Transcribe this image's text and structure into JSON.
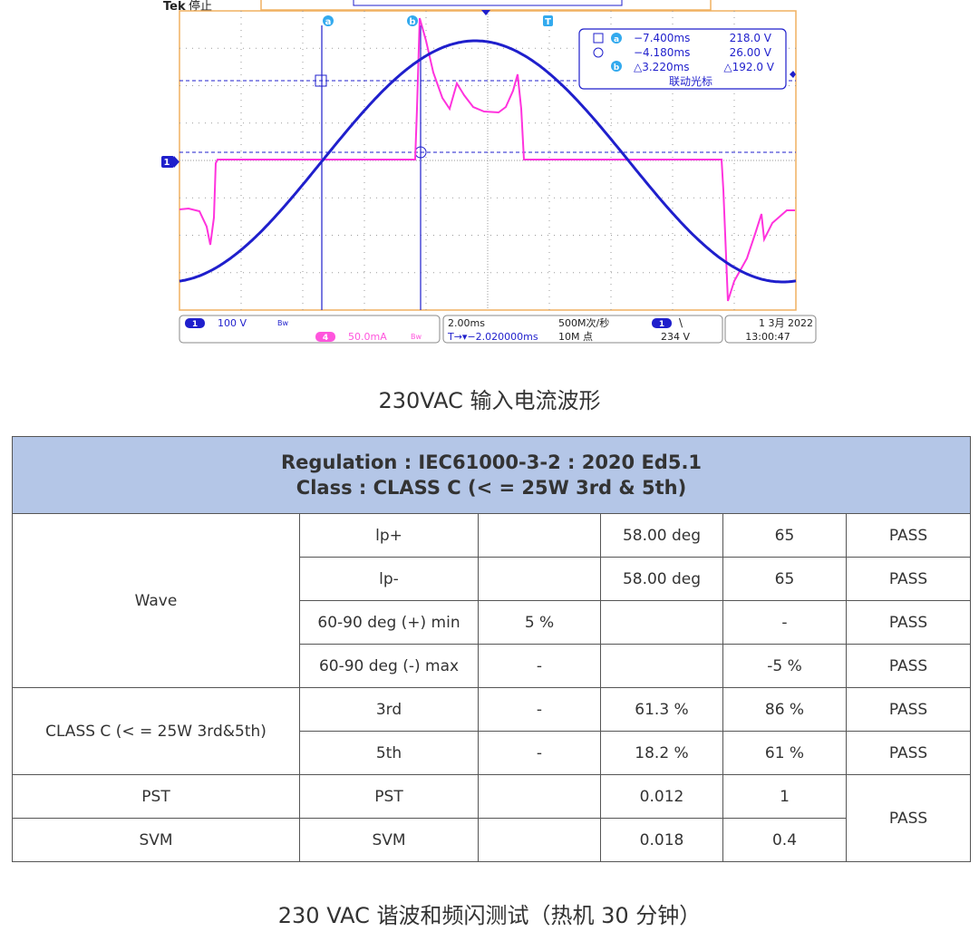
{
  "scope": {
    "brand": "Tek",
    "run_state": "停止",
    "cursor_a_label": "a",
    "cursor_b_label": "b",
    "trigger_label": "T",
    "ch1_marker": "1",
    "readout": {
      "a_time": "−7.400ms",
      "a_value": "218.0 V",
      "b_time": "−4.180ms",
      "b_value": "26.00 V",
      "delta_time": "△3.220ms",
      "delta_value": "△192.0 V",
      "mode": "联动光标"
    },
    "bottom": {
      "ch1_num": "1",
      "ch1_scale": "100 V",
      "ch4_num": "4",
      "ch4_scale": "50.0mA",
      "timebase": "2.00ms",
      "sample_rate": "500M次/秒",
      "trigger_pos": "T→▾−2.020000ms",
      "record_len": "10M 点",
      "trig_ch": "1",
      "trig_slope": "\\",
      "trig_level": "234 V",
      "date": "1 3月 2022",
      "time": "13:00:47"
    },
    "colors": {
      "ch1": "#1f1fcc",
      "ch4": "#ff33dd",
      "grid": "#9a9a9a",
      "frame": "#f0b060"
    }
  },
  "caption_top": "230VAC 输入电流波形",
  "table": {
    "header_line1": "Regulation : IEC61000-3-2 : 2020 Ed5.1",
    "header_line2": "Class : CLASS C  (< = 25W 3rd & 5th)",
    "wave": {
      "group": "Wave",
      "rows": [
        [
          "lp+",
          "",
          "58.00 deg",
          "65",
          "PASS"
        ],
        [
          "lp-",
          "",
          "58.00 deg",
          "65",
          "PASS"
        ],
        [
          "60-90 deg (+) min",
          "5 %",
          "",
          "-",
          "PASS"
        ],
        [
          "60-90 deg (-) max",
          "-",
          "",
          "-5 %",
          "PASS"
        ]
      ]
    },
    "classc": {
      "group": "CLASS C (< = 25W 3rd&5th)",
      "rows": [
        [
          "3rd",
          "-",
          "61.3 %",
          "86 %",
          "PASS"
        ],
        [
          "5th",
          "-",
          "18.2 %",
          "61 %",
          "PASS"
        ]
      ]
    },
    "pst": [
      "PST",
      "PST",
      "",
      "0.012",
      "1"
    ],
    "svm": [
      "SVM",
      "SVM",
      "",
      "0.018",
      "0.4"
    ],
    "flicker_result": "PASS"
  },
  "caption_bottom": "230 VAC 谐波和频闪测试（热机 30 分钟）"
}
